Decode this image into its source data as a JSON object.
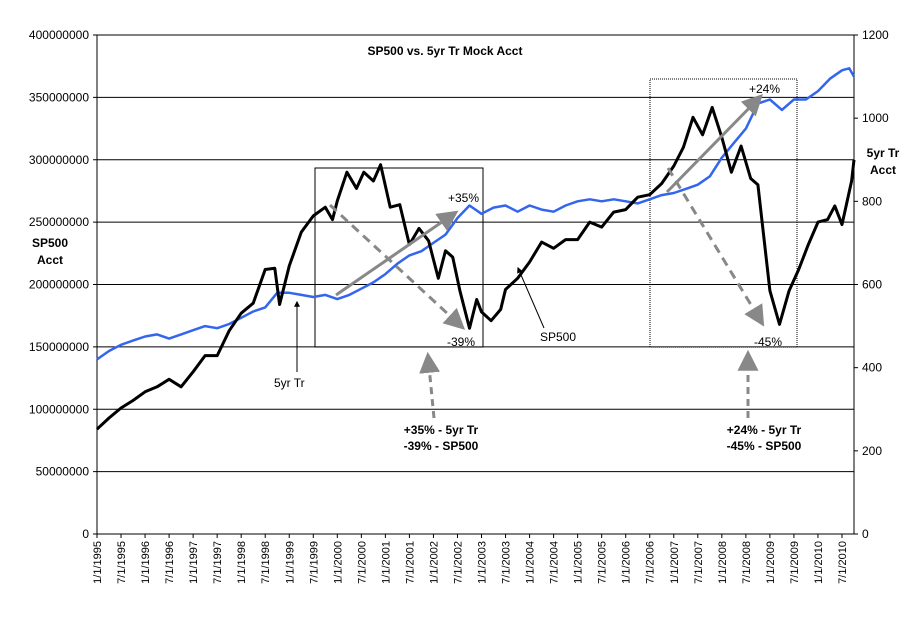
{
  "chart_data": {
    "type": "line",
    "title": "SP500 vs. 5yr Tr Mock Acct",
    "ylabel_left": [
      "SP500",
      "Acct"
    ],
    "ylabel_right": [
      "5yr Tr",
      "Acct"
    ],
    "y_left": {
      "min": 0,
      "max": 400000000,
      "ticks": [
        "0",
        "50000000",
        "100000000",
        "150000000",
        "200000000",
        "250000000",
        "300000000",
        "350000000",
        "400000000"
      ]
    },
    "y_right": {
      "min": 0,
      "max": 1200,
      "ticks": [
        "0",
        "200",
        "400",
        "600",
        "800",
        "1000",
        "1200"
      ]
    },
    "x_range": [
      1995.0,
      2010.75
    ],
    "x_ticks": [
      "1/1/1995",
      "7/1/1995",
      "1/1/1996",
      "7/1/1996",
      "1/1/1997",
      "7/1/1997",
      "1/1/1998",
      "7/1/1998",
      "1/1/1999",
      "7/1/1999",
      "1/1/2000",
      "7/1/2000",
      "1/1/2001",
      "7/1/2001",
      "1/1/2002",
      "7/1/2002",
      "1/1/2003",
      "7/1/2003",
      "1/1/2004",
      "7/1/2004",
      "1/1/2005",
      "7/1/2005",
      "1/1/2006",
      "7/1/2006",
      "1/1/2007",
      "7/1/2007",
      "1/1/2008",
      "7/1/2008",
      "1/1/2009",
      "7/1/2009",
      "1/1/2010",
      "7/1/2010"
    ],
    "grid": "horizontal",
    "series": [
      {
        "name": "SP500",
        "axis": "left",
        "color": "#000000",
        "points": [
          [
            1995.0,
            84000000
          ],
          [
            1995.25,
            93000000
          ],
          [
            1995.5,
            101000000
          ],
          [
            1995.75,
            107000000
          ],
          [
            1996.0,
            114000000
          ],
          [
            1996.25,
            118000000
          ],
          [
            1996.5,
            124000000
          ],
          [
            1996.75,
            118000000
          ],
          [
            1997.0,
            130000000
          ],
          [
            1997.25,
            143000000
          ],
          [
            1997.5,
            143000000
          ],
          [
            1997.75,
            163000000
          ],
          [
            1998.0,
            177000000
          ],
          [
            1998.25,
            185000000
          ],
          [
            1998.5,
            212000000
          ],
          [
            1998.7,
            213000000
          ],
          [
            1998.8,
            184000000
          ],
          [
            1999.0,
            215000000
          ],
          [
            1999.25,
            242000000
          ],
          [
            1999.5,
            255000000
          ],
          [
            1999.75,
            262000000
          ],
          [
            1999.9,
            252000000
          ],
          [
            2000.0,
            267000000
          ],
          [
            2000.2,
            290000000
          ],
          [
            2000.4,
            277000000
          ],
          [
            2000.55,
            290000000
          ],
          [
            2000.75,
            283000000
          ],
          [
            2000.9,
            296000000
          ],
          [
            2001.1,
            262000000
          ],
          [
            2001.3,
            264000000
          ],
          [
            2001.5,
            232000000
          ],
          [
            2001.7,
            245000000
          ],
          [
            2001.9,
            235000000
          ],
          [
            2002.1,
            205000000
          ],
          [
            2002.25,
            227000000
          ],
          [
            2002.4,
            222000000
          ],
          [
            2002.55,
            195000000
          ],
          [
            2002.75,
            165000000
          ],
          [
            2002.9,
            188000000
          ],
          [
            2003.0,
            178000000
          ],
          [
            2003.2,
            171000000
          ],
          [
            2003.4,
            180000000
          ],
          [
            2003.5,
            196000000
          ],
          [
            2003.75,
            205000000
          ],
          [
            2004.0,
            218000000
          ],
          [
            2004.25,
            234000000
          ],
          [
            2004.5,
            229000000
          ],
          [
            2004.75,
            236000000
          ],
          [
            2005.0,
            236000000
          ],
          [
            2005.25,
            250000000
          ],
          [
            2005.5,
            246000000
          ],
          [
            2005.75,
            258000000
          ],
          [
            2006.0,
            260000000
          ],
          [
            2006.25,
            270000000
          ],
          [
            2006.5,
            272000000
          ],
          [
            2006.75,
            281000000
          ],
          [
            2007.0,
            295000000
          ],
          [
            2007.2,
            310000000
          ],
          [
            2007.4,
            334000000
          ],
          [
            2007.6,
            320000000
          ],
          [
            2007.8,
            342000000
          ],
          [
            2008.0,
            318000000
          ],
          [
            2008.2,
            290000000
          ],
          [
            2008.4,
            311000000
          ],
          [
            2008.6,
            285000000
          ],
          [
            2008.75,
            280000000
          ],
          [
            2009.0,
            195000000
          ],
          [
            2009.2,
            168000000
          ],
          [
            2009.4,
            195000000
          ],
          [
            2009.6,
            212000000
          ],
          [
            2009.8,
            232000000
          ],
          [
            2010.0,
            250000000
          ],
          [
            2010.2,
            252000000
          ],
          [
            2010.35,
            263000000
          ],
          [
            2010.5,
            248000000
          ],
          [
            2010.7,
            283000000
          ],
          [
            2010.75,
            300000000
          ]
        ]
      },
      {
        "name": "5yr Tr",
        "axis": "right",
        "color": "#3366ee",
        "points": [
          [
            1995.0,
            420
          ],
          [
            1995.25,
            440
          ],
          [
            1995.5,
            455
          ],
          [
            1995.75,
            465
          ],
          [
            1996.0,
            475
          ],
          [
            1996.25,
            480
          ],
          [
            1996.5,
            470
          ],
          [
            1996.75,
            480
          ],
          [
            1997.0,
            490
          ],
          [
            1997.25,
            500
          ],
          [
            1997.5,
            495
          ],
          [
            1997.75,
            505
          ],
          [
            1998.0,
            520
          ],
          [
            1998.25,
            535
          ],
          [
            1998.5,
            545
          ],
          [
            1998.75,
            580
          ],
          [
            1999.0,
            580
          ],
          [
            1999.25,
            575
          ],
          [
            1999.5,
            570
          ],
          [
            1999.75,
            575
          ],
          [
            2000.0,
            565
          ],
          [
            2000.25,
            575
          ],
          [
            2000.5,
            590
          ],
          [
            2000.75,
            605
          ],
          [
            2001.0,
            625
          ],
          [
            2001.25,
            650
          ],
          [
            2001.5,
            670
          ],
          [
            2001.75,
            680
          ],
          [
            2002.0,
            700
          ],
          [
            2002.25,
            720
          ],
          [
            2002.5,
            760
          ],
          [
            2002.75,
            790
          ],
          [
            2003.0,
            770
          ],
          [
            2003.25,
            785
          ],
          [
            2003.5,
            790
          ],
          [
            2003.75,
            775
          ],
          [
            2004.0,
            790
          ],
          [
            2004.25,
            780
          ],
          [
            2004.5,
            775
          ],
          [
            2004.75,
            790
          ],
          [
            2005.0,
            800
          ],
          [
            2005.25,
            805
          ],
          [
            2005.5,
            800
          ],
          [
            2005.75,
            805
          ],
          [
            2006.0,
            800
          ],
          [
            2006.25,
            795
          ],
          [
            2006.5,
            805
          ],
          [
            2006.75,
            815
          ],
          [
            2007.0,
            820
          ],
          [
            2007.25,
            830
          ],
          [
            2007.5,
            840
          ],
          [
            2007.75,
            860
          ],
          [
            2008.0,
            905
          ],
          [
            2008.25,
            940
          ],
          [
            2008.5,
            975
          ],
          [
            2008.75,
            1035
          ],
          [
            2009.0,
            1045
          ],
          [
            2009.25,
            1020
          ],
          [
            2009.5,
            1045
          ],
          [
            2009.75,
            1045
          ],
          [
            2010.0,
            1065
          ],
          [
            2010.25,
            1095
          ],
          [
            2010.5,
            1115
          ],
          [
            2010.65,
            1120
          ],
          [
            2010.75,
            1100
          ]
        ]
      }
    ],
    "annotations": {
      "label_sp500": "SP500",
      "label_5yrtr": "5yr Tr",
      "pct_plus35": "+35%",
      "pct_minus39": "-39%",
      "pct_plus24": "+24%",
      "pct_minus45": "-45%",
      "note1_line1": "+35% - 5yr Tr",
      "note1_line2": "-39% - SP500",
      "note2_line1": "+24% - 5yr Tr",
      "note2_line2": "-45% - SP500"
    }
  }
}
